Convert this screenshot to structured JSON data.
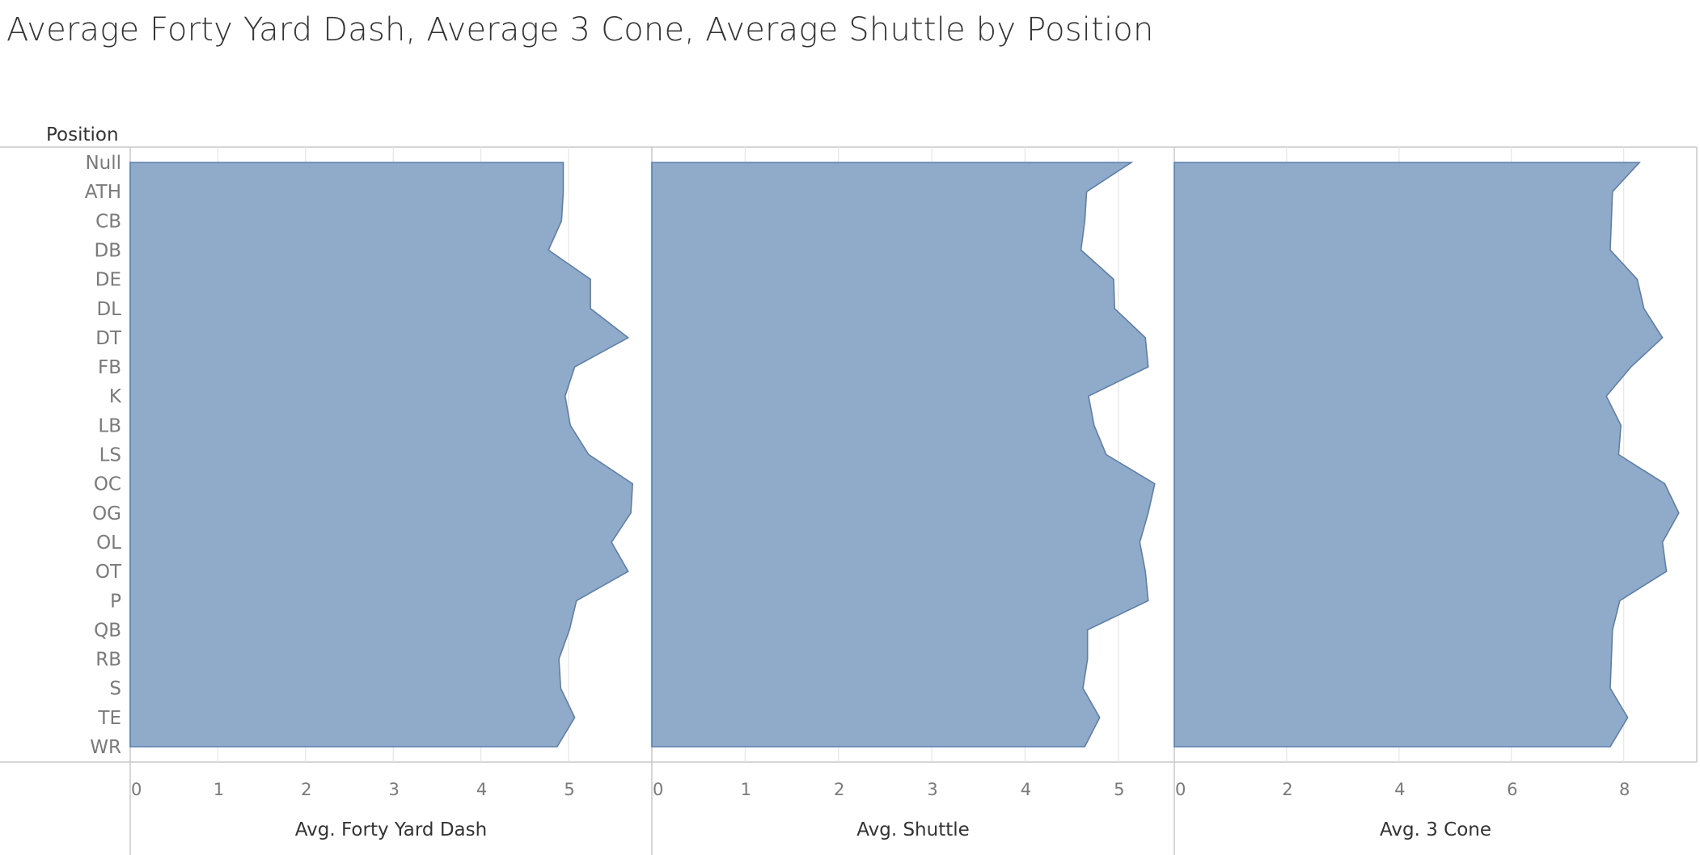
{
  "title": "Average Forty Yard Dash, Average 3 Cone, Average Shuttle by Position",
  "row_header": "Position",
  "colors": {
    "area_fill": "#8fabc9",
    "area_stroke": "#5b7fae",
    "gridline": "#e6e6e6",
    "axis_line": "#c8c8c8",
    "tick_text": "#7a7a7a",
    "label_text": "#333333"
  },
  "chart_data": {
    "type": "area",
    "orientation": "horizontal",
    "categories": [
      "Null",
      "ATH",
      "CB",
      "DB",
      "DE",
      "DL",
      "DT",
      "FB",
      "K",
      "LB",
      "LS",
      "OC",
      "OG",
      "OL",
      "OT",
      "P",
      "QB",
      "RB",
      "S",
      "TE",
      "WR"
    ],
    "grid": true,
    "panels": [
      {
        "xlabel": "Avg. Forty Yard Dash",
        "xlim": [
          0,
          5.95
        ],
        "ticks": [
          0,
          1,
          2,
          3,
          4,
          5
        ],
        "values": [
          4.94,
          4.94,
          4.92,
          4.77,
          5.25,
          5.25,
          5.68,
          5.07,
          4.96,
          5.02,
          5.23,
          5.73,
          5.71,
          5.49,
          5.68,
          5.09,
          5.01,
          4.89,
          4.91,
          5.07,
          4.87
        ]
      },
      {
        "xlabel": "Avg. Shuttle",
        "xlim": [
          0,
          5.6
        ],
        "ticks": [
          0,
          1,
          2,
          3,
          4,
          5
        ],
        "values": [
          5.14,
          4.66,
          4.64,
          4.6,
          4.95,
          4.96,
          5.29,
          5.32,
          4.68,
          4.74,
          4.87,
          5.39,
          5.32,
          5.23,
          5.29,
          5.32,
          4.67,
          4.67,
          4.62,
          4.8,
          4.64
        ]
      },
      {
        "xlabel": "Avg. 3 Cone",
        "xlim": [
          0,
          9.3
        ],
        "ticks": [
          0,
          2,
          4,
          6,
          8
        ],
        "values": [
          8.28,
          7.8,
          7.78,
          7.76,
          8.24,
          8.36,
          8.69,
          8.13,
          7.69,
          7.95,
          7.91,
          8.73,
          8.98,
          8.69,
          8.76,
          7.93,
          7.8,
          7.78,
          7.76,
          8.07,
          7.76
        ]
      }
    ]
  }
}
